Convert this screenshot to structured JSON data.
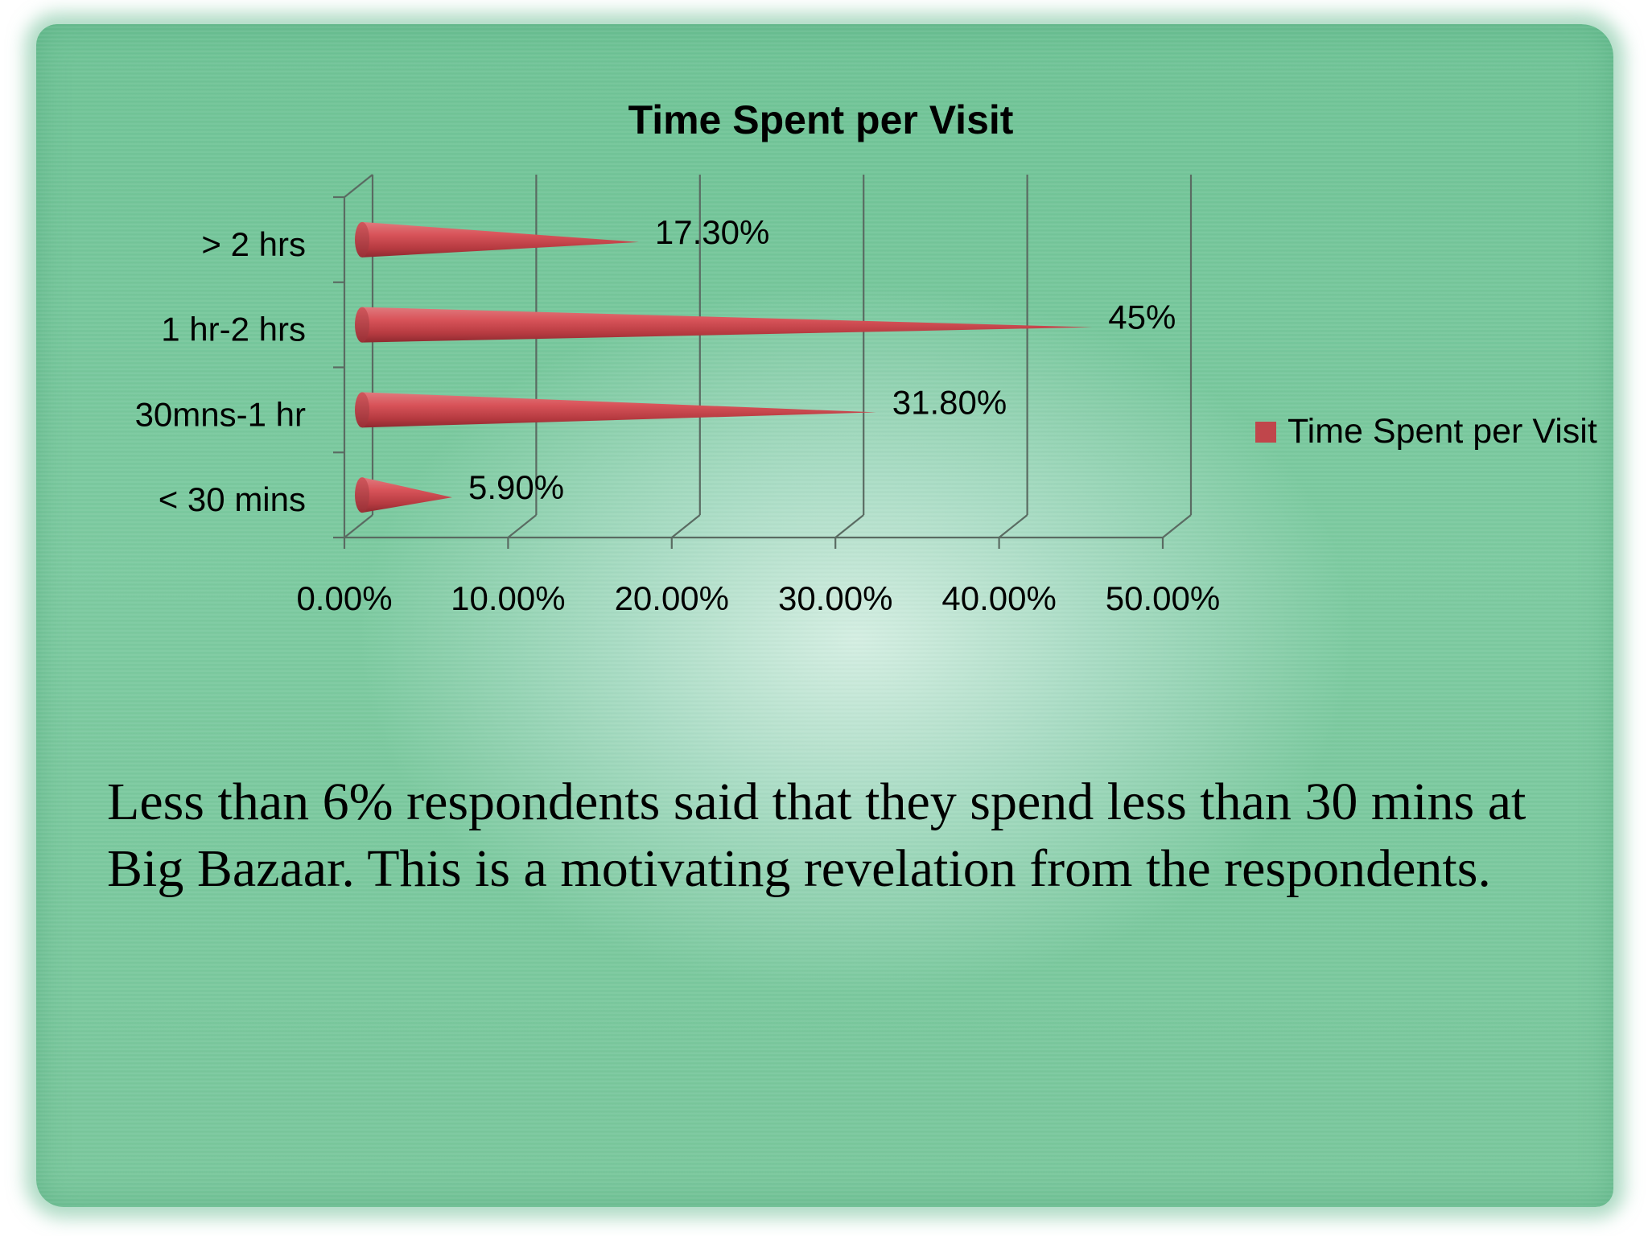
{
  "chart_data": {
    "type": "bar",
    "orientation": "horizontal",
    "style": "3d-cone",
    "title": "Time Spent per Visit",
    "categories": [
      "< 30 mins",
      "30mns-1 hr",
      "1 hr-2 hrs",
      "> 2 hrs"
    ],
    "series": [
      {
        "name": "Time Spent per Visit",
        "values": [
          5.9,
          31.8,
          45,
          17.3
        ],
        "data_labels": [
          "5.90%",
          "31.80%",
          "45%",
          "17.30%"
        ],
        "color": "#c0464b"
      }
    ],
    "x_ticks": [
      "0.00%",
      "10.00%",
      "20.00%",
      "30.00%",
      "40.00%",
      "50.00%"
    ],
    "xlim": [
      0,
      50
    ],
    "xlabel": "",
    "ylabel": "",
    "grid": "vertical",
    "legend_position": "right"
  },
  "body": {
    "text": "Less than 6% respondents said that they spend less than 30 mins at Big Bazaar. This is a motivating revelation from the respondents."
  }
}
